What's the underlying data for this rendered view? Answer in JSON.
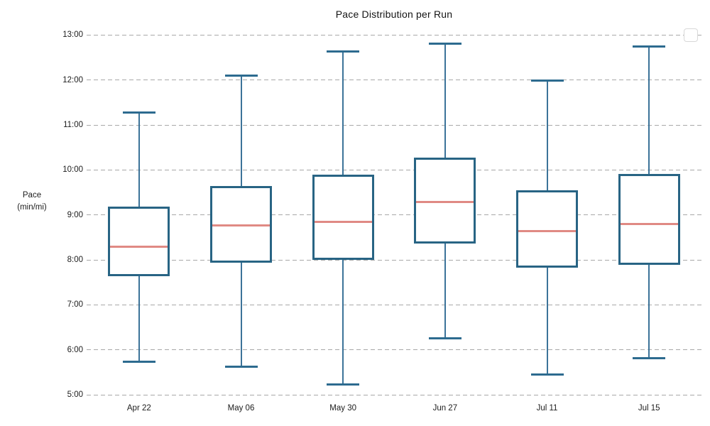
{
  "chart": {
    "title": "Pace Distribution per Run",
    "y_axis": {
      "label_line1": "Pace",
      "label_line2": "(min/mi)",
      "ticks": [
        "13:00",
        "12:00",
        "11:00",
        "10:00",
        "9:00",
        "8:00",
        "7:00",
        "6:00",
        "5:00"
      ]
    },
    "legend": {
      "visible": true,
      "entries": []
    }
  },
  "chart_data": {
    "type": "boxplot",
    "title": "Pace Distribution per Run",
    "xlabel": "",
    "ylabel": "Pace (min/mi)",
    "ylim": [
      "5:00",
      "13:00"
    ],
    "y_tick_interval": "1:00",
    "grid": "horizontal-dashed",
    "legend_position": "top-right-empty",
    "categories": [
      "Apr 22",
      "May 06",
      "May 30",
      "Jun 27",
      "Jul 11",
      "Jul 15"
    ],
    "series": [
      {
        "category": "Apr 22",
        "whisker_low": "5:44",
        "q1": "7:40",
        "median": "8:18",
        "q3": "9:10",
        "whisker_high": "11:17"
      },
      {
        "category": "May 06",
        "whisker_low": "5:37",
        "q1": "7:58",
        "median": "8:46",
        "q3": "9:37",
        "whisker_high": "12:06"
      },
      {
        "category": "May 30",
        "whisker_low": "5:14",
        "q1": "8:01",
        "median": "8:51",
        "q3": "9:52",
        "whisker_high": "12:38"
      },
      {
        "category": "Jun 27",
        "whisker_low": "6:15",
        "q1": "8:23",
        "median": "9:17",
        "q3": "10:15",
        "whisker_high": "12:49"
      },
      {
        "category": "Jul 11",
        "whisker_low": "5:27",
        "q1": "7:51",
        "median": "8:38",
        "q3": "9:31",
        "whisker_high": "11:59"
      },
      {
        "category": "Jul 15",
        "whisker_low": "5:49",
        "q1": "7:55",
        "median": "8:48",
        "q3": "9:53",
        "whisker_high": "12:45"
      }
    ]
  },
  "colors": {
    "box_border": "#286484",
    "median": "#e08a84",
    "whisker": "#3c7399",
    "whisker_cap": "#2d6b8f",
    "gridline": "#a8a8a8",
    "text": "#1c1c1c",
    "background": "#ffffff",
    "legend_border": "#d8d8d8"
  }
}
